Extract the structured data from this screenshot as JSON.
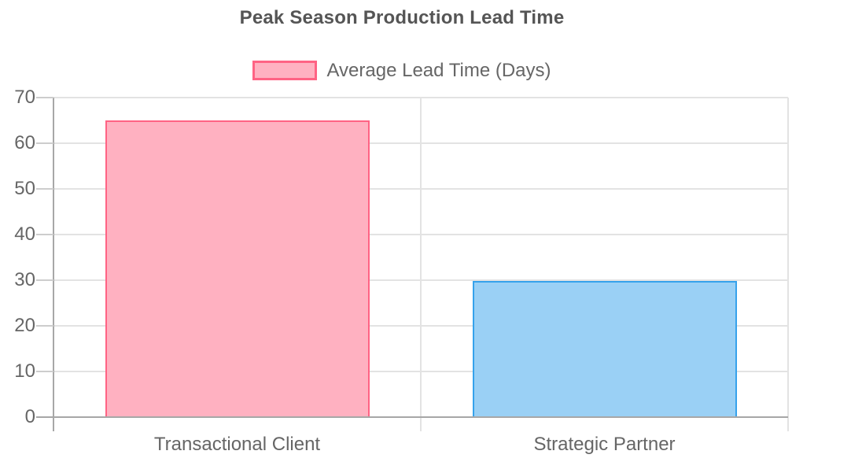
{
  "chart_data": {
    "type": "bar",
    "title": "Peak Season Production Lead Time",
    "categories": [
      "Transactional Client",
      "Strategic Partner"
    ],
    "series": [
      {
        "name": "Average Lead Time (Days)",
        "values": [
          65,
          29.8
        ]
      }
    ],
    "bar_colors": [
      {
        "fill": "#ffb1c1",
        "border": "#ff6384"
      },
      {
        "fill": "#9ad0f5",
        "border": "#36a2eb"
      }
    ],
    "xlabel": "",
    "ylabel": "",
    "ylim": [
      0,
      70
    ],
    "yticks": [
      0,
      10,
      20,
      30,
      40,
      50,
      60,
      70
    ],
    "grid": true,
    "legend_position": "top"
  },
  "legend": {
    "label": "Average Lead Time (Days)",
    "swatch_fill": "#ffb1c1",
    "swatch_border": "#ff6384"
  },
  "colors": {
    "title_text": "#555555",
    "axis_text": "#666666",
    "grid_line": "#e3e3e3",
    "axis_line": "#a7a7a7",
    "minor_tick": "#cdcdcd",
    "background": "#ffffff"
  }
}
